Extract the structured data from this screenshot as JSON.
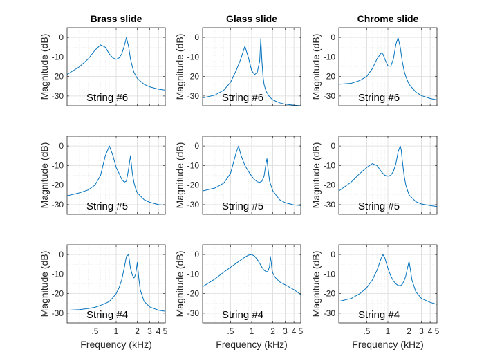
{
  "chart_data": {
    "type": "line",
    "layout": "3x3 grid of subplots",
    "columns": [
      "Brass slide",
      "Glass slide",
      "Chrome slide"
    ],
    "rows": [
      "String #6",
      "String #5",
      "String #4"
    ],
    "xlabel": "Frequency (kHz)",
    "ylabel": "Magnitude (dB)",
    "xscale": "log",
    "xlim": [
      0.2,
      5
    ],
    "xticks": [
      0.5,
      1,
      2,
      3,
      4,
      5
    ],
    "xtick_labels": [
      ".5",
      "1",
      "2",
      "3",
      "4",
      "5"
    ],
    "ylim": [
      -35,
      5
    ],
    "yticks": [
      0,
      -10,
      -20,
      -30
    ],
    "ytick_labels": [
      "0",
      "-10",
      "-20",
      "-30"
    ],
    "grid": true,
    "line_color": "#0072BD",
    "panels": [
      {
        "row": 0,
        "col": 0,
        "title": "Brass slide",
        "label": "String #6",
        "x": [
          0.2,
          0.3,
          0.4,
          0.5,
          0.6,
          0.7,
          0.8,
          0.9,
          1.0,
          1.1,
          1.2,
          1.3,
          1.4,
          1.5,
          1.6,
          1.7,
          1.8,
          2.0,
          2.5,
          3.0,
          4.0,
          5.0
        ],
        "y": [
          -19,
          -15,
          -11,
          -6.5,
          -3.8,
          -5,
          -8.5,
          -10.5,
          -11.2,
          -10.5,
          -8.5,
          -4.5,
          -0.1,
          -4.5,
          -11,
          -15,
          -18,
          -21,
          -24,
          -25.3,
          -26.5,
          -27
        ]
      },
      {
        "row": 0,
        "col": 1,
        "title": "Glass slide",
        "label": "String #6",
        "x": [
          0.2,
          0.3,
          0.4,
          0.5,
          0.6,
          0.7,
          0.8,
          0.9,
          1.0,
          1.1,
          1.2,
          1.3,
          1.35,
          1.4,
          1.45,
          1.5,
          1.6,
          1.8,
          2.0,
          2.5,
          3.0,
          4.0,
          5.0
        ],
        "y": [
          -31,
          -29.5,
          -27,
          -23,
          -17,
          -11,
          -4.5,
          -10.5,
          -17,
          -19,
          -18,
          -12,
          -0.5,
          -12,
          -20,
          -24,
          -27.5,
          -30.5,
          -32,
          -33.5,
          -34.2,
          -34.7,
          -35
        ]
      },
      {
        "row": 0,
        "col": 2,
        "title": "Chrome slide",
        "label": "String #6",
        "x": [
          0.2,
          0.3,
          0.4,
          0.5,
          0.6,
          0.7,
          0.8,
          0.85,
          0.9,
          1.0,
          1.1,
          1.2,
          1.3,
          1.4,
          1.5,
          1.6,
          1.7,
          1.8,
          2.0,
          2.5,
          3.0,
          4.0,
          5.0
        ],
        "y": [
          -24,
          -23.5,
          -22,
          -20,
          -16,
          -11,
          -8,
          -8.5,
          -11,
          -14.5,
          -14.8,
          -11,
          -3.5,
          -0.2,
          -5,
          -12,
          -17,
          -20,
          -24,
          -28,
          -29.8,
          -31.3,
          -32
        ]
      },
      {
        "row": 1,
        "col": 0,
        "title": "Brass slide",
        "label": "String #5",
        "x": [
          0.2,
          0.3,
          0.4,
          0.5,
          0.6,
          0.7,
          0.8,
          0.9,
          1.0,
          1.1,
          1.2,
          1.3,
          1.4,
          1.5,
          1.6,
          1.7,
          1.8,
          1.9,
          2.0,
          2.5,
          3.0,
          4.0,
          5.0
        ],
        "y": [
          -25.5,
          -24,
          -22.5,
          -20,
          -15,
          -5,
          0,
          -5,
          -11,
          -14,
          -17,
          -18.5,
          -18,
          -12,
          -5,
          -14,
          -19,
          -22,
          -24,
          -27.5,
          -28.8,
          -30,
          -30.3
        ]
      },
      {
        "row": 1,
        "col": 1,
        "title": "Glass slide",
        "label": "String #5",
        "x": [
          0.2,
          0.3,
          0.4,
          0.5,
          0.6,
          0.65,
          0.7,
          0.8,
          0.9,
          1.0,
          1.1,
          1.2,
          1.3,
          1.4,
          1.5,
          1.6,
          1.65,
          1.7,
          1.8,
          2.0,
          2.5,
          3.0,
          4.0,
          5.0
        ],
        "y": [
          -23,
          -21.5,
          -19,
          -14,
          -3.5,
          0,
          -4.5,
          -10,
          -13,
          -15.5,
          -17.2,
          -18.3,
          -18.6,
          -18,
          -15.5,
          -9,
          -6.5,
          -11,
          -18,
          -23,
          -27.5,
          -29,
          -30.2,
          -30.5
        ]
      },
      {
        "row": 1,
        "col": 2,
        "title": "Chrome slide",
        "label": "String #5",
        "x": [
          0.2,
          0.3,
          0.4,
          0.5,
          0.6,
          0.7,
          0.8,
          0.9,
          1.0,
          1.1,
          1.2,
          1.3,
          1.4,
          1.5,
          1.55,
          1.6,
          1.7,
          1.8,
          2.0,
          2.5,
          3.0,
          4.0,
          5.0
        ],
        "y": [
          -23,
          -18.5,
          -14,
          -11,
          -9,
          -10,
          -13,
          -15,
          -15.5,
          -15,
          -13,
          -9,
          -3,
          0,
          -2,
          -7,
          -15,
          -20,
          -25,
          -28.5,
          -29.7,
          -30.5,
          -31
        ]
      },
      {
        "row": 2,
        "col": 0,
        "title": "Brass slide",
        "label": "String #4",
        "x": [
          0.2,
          0.3,
          0.4,
          0.5,
          0.6,
          0.7,
          0.8,
          0.9,
          1.0,
          1.1,
          1.2,
          1.3,
          1.4,
          1.5,
          1.6,
          1.7,
          1.8,
          1.9,
          2.0,
          2.1,
          2.2,
          2.5,
          3.0,
          4.0,
          5.0
        ],
        "y": [
          -28.5,
          -28.2,
          -27.6,
          -27,
          -26,
          -25,
          -24,
          -22,
          -20,
          -17,
          -13,
          -7,
          -1,
          0,
          -7,
          -10.5,
          -12,
          -10,
          -4,
          -12,
          -18,
          -24,
          -26.8,
          -28.5,
          -29
        ]
      },
      {
        "row": 2,
        "col": 1,
        "title": "Glass slide",
        "label": "String #4",
        "x": [
          0.2,
          0.3,
          0.4,
          0.5,
          0.6,
          0.7,
          0.8,
          0.9,
          1.0,
          1.1,
          1.2,
          1.3,
          1.4,
          1.5,
          1.6,
          1.7,
          1.8,
          1.85,
          1.9,
          1.95,
          2.0,
          2.1,
          2.2,
          2.5,
          3.0,
          4.0,
          5.0
        ],
        "y": [
          -16.5,
          -12.5,
          -9,
          -6.5,
          -4.5,
          -2.8,
          -1.3,
          -0.3,
          0,
          -0.8,
          -2.5,
          -4.5,
          -6.5,
          -8,
          -8.7,
          -8.7,
          -6,
          -1,
          -4,
          -8,
          -9.5,
          -11,
          -12,
          -14,
          -15.5,
          -18,
          -20.5
        ]
      },
      {
        "row": 2,
        "col": 2,
        "title": "Chrome slide",
        "label": "String #4",
        "x": [
          0.2,
          0.3,
          0.4,
          0.5,
          0.6,
          0.7,
          0.8,
          0.85,
          0.9,
          1.0,
          1.1,
          1.2,
          1.3,
          1.4,
          1.5,
          1.6,
          1.7,
          1.8,
          1.9,
          2.0,
          2.1,
          2.2,
          2.5,
          3.0,
          4.0,
          5.0
        ],
        "y": [
          -24,
          -22.5,
          -20,
          -17,
          -13,
          -8,
          -2,
          0,
          -1.5,
          -7,
          -11,
          -13.5,
          -15,
          -15.8,
          -16,
          -15.3,
          -13.5,
          -11,
          -7,
          -3.5,
          -8,
          -13,
          -19,
          -22.5,
          -24.5,
          -25.5
        ]
      }
    ]
  }
}
